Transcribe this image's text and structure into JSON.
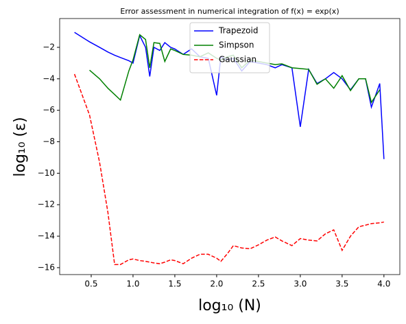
{
  "chart_data": {
    "type": "line",
    "title": "Error assessment in numerical integration of f(x) = exp(x)",
    "xlabel": "log₁₀ (N)",
    "ylabel": "log₁₀ (ε)",
    "x": [
      0.3,
      0.48,
      0.6,
      0.7,
      0.78,
      0.85,
      0.95,
      1.0,
      1.08,
      1.15,
      1.2,
      1.25,
      1.32,
      1.38,
      1.45,
      1.5,
      1.6,
      1.7,
      1.8,
      1.9,
      2.0,
      2.05,
      2.13,
      2.2,
      2.3,
      2.4,
      2.5,
      2.6,
      2.7,
      2.78,
      2.9,
      3.0,
      3.1,
      3.2,
      3.3,
      3.4,
      3.5,
      3.6,
      3.7,
      3.78,
      3.85,
      3.95,
      4.0
    ],
    "series": [
      {
        "name": "Trapezoid",
        "color": "#0000ff",
        "dash": false,
        "values": [
          -1.05,
          -1.65,
          -2.0,
          -2.3,
          -2.5,
          -2.65,
          -2.85,
          -3.0,
          -1.25,
          -2.0,
          -3.85,
          -2.0,
          -2.2,
          -1.7,
          -2.0,
          -2.1,
          -2.45,
          -2.1,
          -2.6,
          -2.7,
          -5.05,
          -2.6,
          -2.8,
          -2.7,
          -3.5,
          -2.9,
          -3.0,
          -3.1,
          -3.3,
          -3.1,
          -3.3,
          -7.05,
          -3.4,
          -4.3,
          -4.0,
          -3.6,
          -4.0,
          -4.7,
          -4.0,
          -4.0,
          -5.8,
          -4.3,
          -9.1
        ]
      },
      {
        "name": "Simpson",
        "color": "#008000",
        "dash": false,
        "values": [
          null,
          -3.45,
          -4.0,
          -4.6,
          -5.0,
          -5.35,
          -3.5,
          -2.8,
          -1.2,
          -1.5,
          -3.3,
          -1.7,
          -1.75,
          -2.9,
          -2.1,
          -2.2,
          -2.45,
          -2.5,
          -2.6,
          -2.35,
          -2.7,
          -2.8,
          -2.6,
          -2.5,
          -3.3,
          -2.8,
          -2.9,
          -3.0,
          -3.1,
          -3.05,
          -3.3,
          -3.35,
          -3.4,
          -4.35,
          -4.0,
          -4.6,
          -3.8,
          -4.75,
          -4.0,
          -4.0,
          -5.5,
          -4.7,
          null
        ]
      },
      {
        "name": "Gaussian",
        "color": "#ff0000",
        "dash": true,
        "values": [
          -3.7,
          -6.3,
          -9.3,
          -12.5,
          -15.8,
          -15.8,
          -15.5,
          -15.45,
          -15.55,
          -15.6,
          -15.65,
          -15.7,
          -15.75,
          -15.65,
          -15.5,
          -15.55,
          -15.75,
          -15.4,
          -15.15,
          -15.15,
          -15.4,
          -15.6,
          -15.1,
          -14.6,
          -14.75,
          -14.8,
          -14.55,
          -14.25,
          -14.05,
          -14.3,
          -14.6,
          -14.15,
          -14.25,
          -14.3,
          -13.85,
          -13.6,
          -14.9,
          -14.0,
          -13.4,
          -13.3,
          -13.2,
          -13.15,
          -13.1
        ]
      }
    ],
    "xlim": [
      0.123,
      4.19
    ],
    "ylim": [
      -16.44,
      -0.17
    ],
    "xticks": [
      0.5,
      {
        "value": 1,
        "label": "1.0"
      },
      1.5,
      {
        "value": 2,
        "label": "2.0"
      },
      2.5,
      {
        "value": 3,
        "label": "3.0"
      },
      3.5,
      {
        "value": 4,
        "label": "4.0"
      }
    ],
    "yticks": [
      {
        "value": -16,
        "label": "−16"
      },
      {
        "value": -14,
        "label": "−14"
      },
      {
        "value": -12,
        "label": "−12"
      },
      {
        "value": -10,
        "label": "−10"
      },
      {
        "value": -8,
        "label": "−8"
      },
      {
        "value": -6,
        "label": "−6"
      },
      {
        "value": -4,
        "label": "−4"
      },
      {
        "value": -2,
        "label": "−2"
      }
    ],
    "legend": "upper center",
    "grid": false
  }
}
